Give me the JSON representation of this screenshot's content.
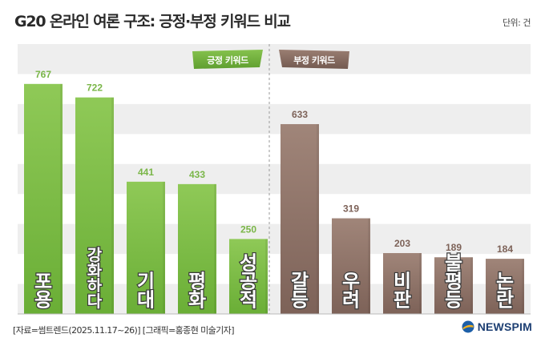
{
  "header": {
    "title": "G20 온라인 여론 구조: 긍정·부정 키워드 비교",
    "unit": "단위: 건"
  },
  "footer": {
    "source": "[자료=썸트렌드(2025.11.17~26)] [그래픽=홍종현 미술기자]",
    "logo_text": "NEWSPIM"
  },
  "colors": {
    "positive_top": "#8fc957",
    "positive_bottom": "#6aae36",
    "negative_top": "#a08579",
    "negative_bottom": "#7d6258",
    "band": "#eeeeee",
    "divider": "#999999"
  },
  "chart_data": {
    "type": "bar",
    "ylim": [
      0,
      900
    ],
    "grid": "horizontal bands",
    "groups": [
      {
        "label": "긍정 키워드",
        "categories": [
          "포용",
          "강화하다",
          "기대",
          "평화",
          "성공적"
        ],
        "values": [
          767,
          722,
          441,
          433,
          250
        ]
      },
      {
        "label": "부정 키워드",
        "categories": [
          "갈등",
          "우려",
          "비판",
          "불평등",
          "논란"
        ],
        "values": [
          633,
          319,
          203,
          189,
          184
        ]
      }
    ]
  }
}
